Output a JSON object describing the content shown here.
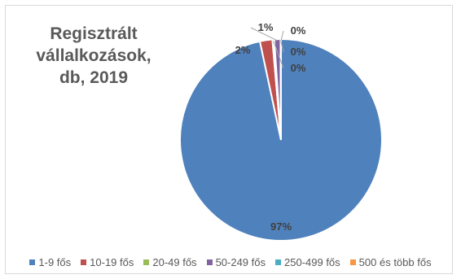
{
  "chart_data": {
    "type": "pie",
    "title_lines": [
      "Regisztrált",
      "vállalkozások,",
      "db, 2019"
    ],
    "categories": [
      "1-9 fős",
      "10-19 fős",
      "20-49 fős",
      "50-249 fős",
      "250-499 fős",
      "500 és több fős"
    ],
    "values": [
      97,
      2,
      0.3,
      1,
      0.05,
      0.02
    ],
    "labels": [
      "97%",
      "2%",
      "0%",
      "1%",
      "0%",
      "0%"
    ],
    "colors": [
      "#4f81bd",
      "#c0504d",
      "#9bbb59",
      "#8064a2",
      "#4bacc6",
      "#f79646"
    ],
    "legend_position": "bottom"
  }
}
